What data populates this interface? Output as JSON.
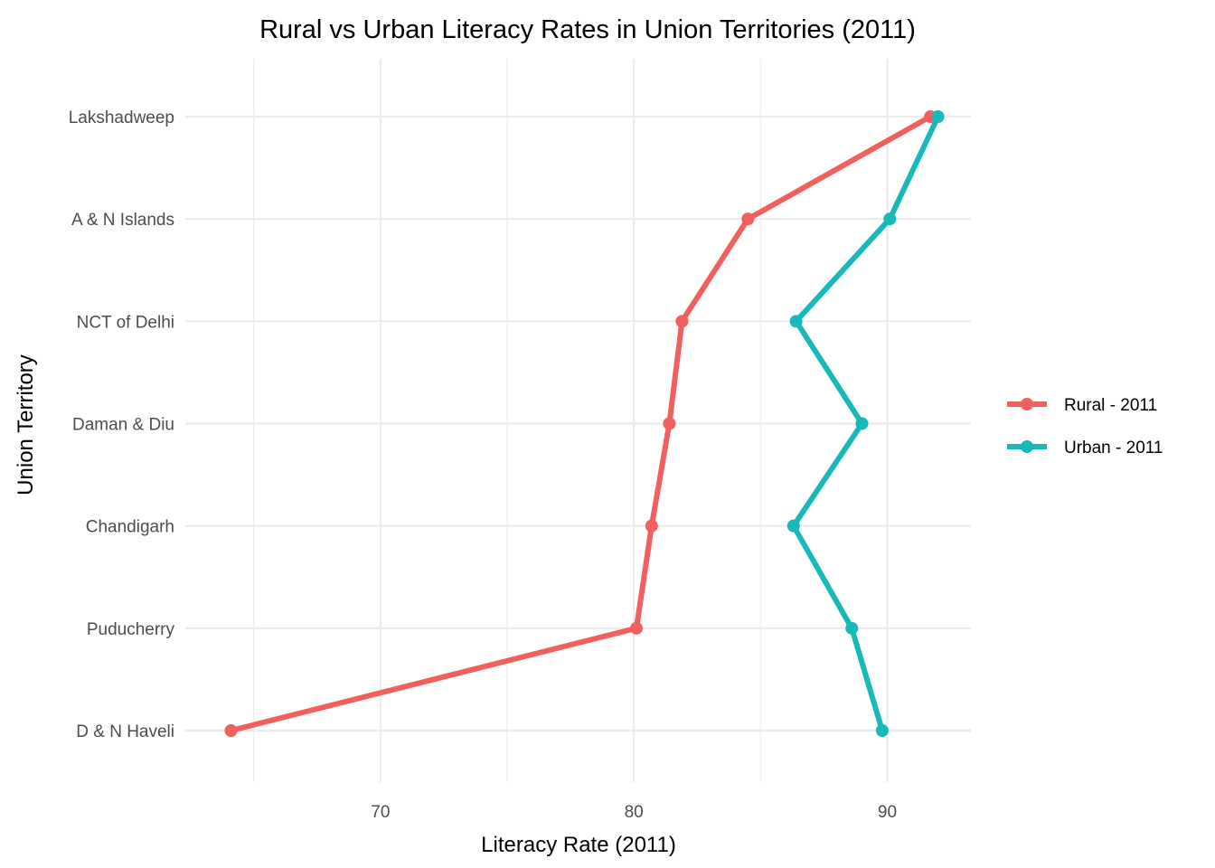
{
  "chart_data": {
    "type": "line",
    "title": "Rural vs Urban Literacy Rates in Union Territories (2011)",
    "xlabel": "Literacy Rate (2011)",
    "ylabel": "Union Territory",
    "categories": [
      "D & N Haveli",
      "Puducherry",
      "Chandigarh",
      "Daman & Diu",
      "NCT of Delhi",
      "A & N Islands",
      "Lakshadweep"
    ],
    "xlim": [
      62.3,
      93.3
    ],
    "x_ticks": [
      70,
      80,
      90
    ],
    "x_minor": [
      65,
      75,
      85
    ],
    "grid": true,
    "legend_position": "right",
    "series": [
      {
        "name": "Rural - 2011",
        "color": "#f15f5e",
        "values": [
          64.1,
          80.1,
          80.7,
          81.4,
          81.9,
          84.5,
          91.7
        ]
      },
      {
        "name": "Urban - 2011",
        "color": "#19b8b9",
        "values": [
          89.8,
          88.6,
          86.3,
          89.0,
          86.4,
          90.1,
          92.0
        ]
      }
    ]
  }
}
